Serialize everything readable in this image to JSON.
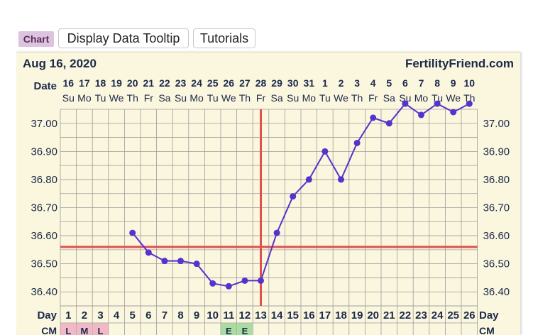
{
  "toolbar": {
    "chart_tab": "Chart",
    "tooltip_button": "Display Data Tooltip",
    "tutorials_button": "Tutorials"
  },
  "header": {
    "date": "Aug 16, 2020",
    "site": "FertilityFriend.com"
  },
  "colors": {
    "tab_bg": "#dcc4de",
    "panel_bg": "#fbf6de",
    "grid": "#9c9c9c",
    "temp_line": "#5533cc",
    "coverline": "#e05050",
    "ovulation_line": "#e05050",
    "cm_pink": "#f2b8c6",
    "cm_green": "#a8dca0"
  },
  "chart_data": {
    "type": "line",
    "row_labels": {
      "date": "Date",
      "day": "Day",
      "cm": "CM"
    },
    "dates": [
      "16",
      "17",
      "18",
      "19",
      "20",
      "21",
      "22",
      "23",
      "24",
      "25",
      "26",
      "27",
      "28",
      "29",
      "30",
      "31",
      "1",
      "2",
      "3",
      "4",
      "5",
      "6",
      "7",
      "8",
      "9",
      "10"
    ],
    "weekdays": [
      "Su",
      "Mo",
      "Tu",
      "We",
      "Th",
      "Fr",
      "Sa",
      "Su",
      "Mo",
      "Tu",
      "We",
      "Th",
      "Fr",
      "Sa",
      "Su",
      "Mo",
      "Tu",
      "We",
      "Th",
      "Fr",
      "Sa",
      "Su",
      "Mo",
      "Tu",
      "We",
      "Th"
    ],
    "days": [
      "1",
      "2",
      "3",
      "4",
      "5",
      "6",
      "7",
      "8",
      "9",
      "10",
      "11",
      "12",
      "13",
      "14",
      "15",
      "16",
      "17",
      "18",
      "19",
      "20",
      "21",
      "22",
      "23",
      "24",
      "25",
      "26"
    ],
    "y_ticks": [
      "37.00",
      "36.90",
      "36.80",
      "36.70",
      "36.60",
      "36.50",
      "36.40"
    ],
    "ylim": [
      36.35,
      37.08
    ],
    "temperatures": [
      {
        "day": 5,
        "temp": 36.61
      },
      {
        "day": 6,
        "temp": 36.54
      },
      {
        "day": 7,
        "temp": 36.51
      },
      {
        "day": 8,
        "temp": 36.51
      },
      {
        "day": 9,
        "temp": 36.5
      },
      {
        "day": 10,
        "temp": 36.43
      },
      {
        "day": 11,
        "temp": 36.42
      },
      {
        "day": 12,
        "temp": 36.44
      },
      {
        "day": 13,
        "temp": 36.44
      },
      {
        "day": 14,
        "temp": 36.61
      },
      {
        "day": 15,
        "temp": 36.74
      },
      {
        "day": 16,
        "temp": 36.8
      },
      {
        "day": 17,
        "temp": 36.9
      },
      {
        "day": 18,
        "temp": 36.8
      },
      {
        "day": 19,
        "temp": 36.93
      },
      {
        "day": 20,
        "temp": 37.02
      },
      {
        "day": 21,
        "temp": 37.0
      },
      {
        "day": 22,
        "temp": 37.07
      },
      {
        "day": 23,
        "temp": 37.03
      },
      {
        "day": 24,
        "temp": 37.07
      },
      {
        "day": 25,
        "temp": 37.04
      },
      {
        "day": 26,
        "temp": 37.07
      }
    ],
    "coverline_temp": 36.56,
    "ovulation_day": 13,
    "cm": [
      {
        "day": 1,
        "value": "L",
        "color": "pink"
      },
      {
        "day": 2,
        "value": "M",
        "color": "pink"
      },
      {
        "day": 3,
        "value": "L",
        "color": "pink"
      },
      {
        "day": 11,
        "value": "E",
        "color": "green"
      },
      {
        "day": 12,
        "value": "E",
        "color": "green"
      }
    ],
    "grid": true
  }
}
